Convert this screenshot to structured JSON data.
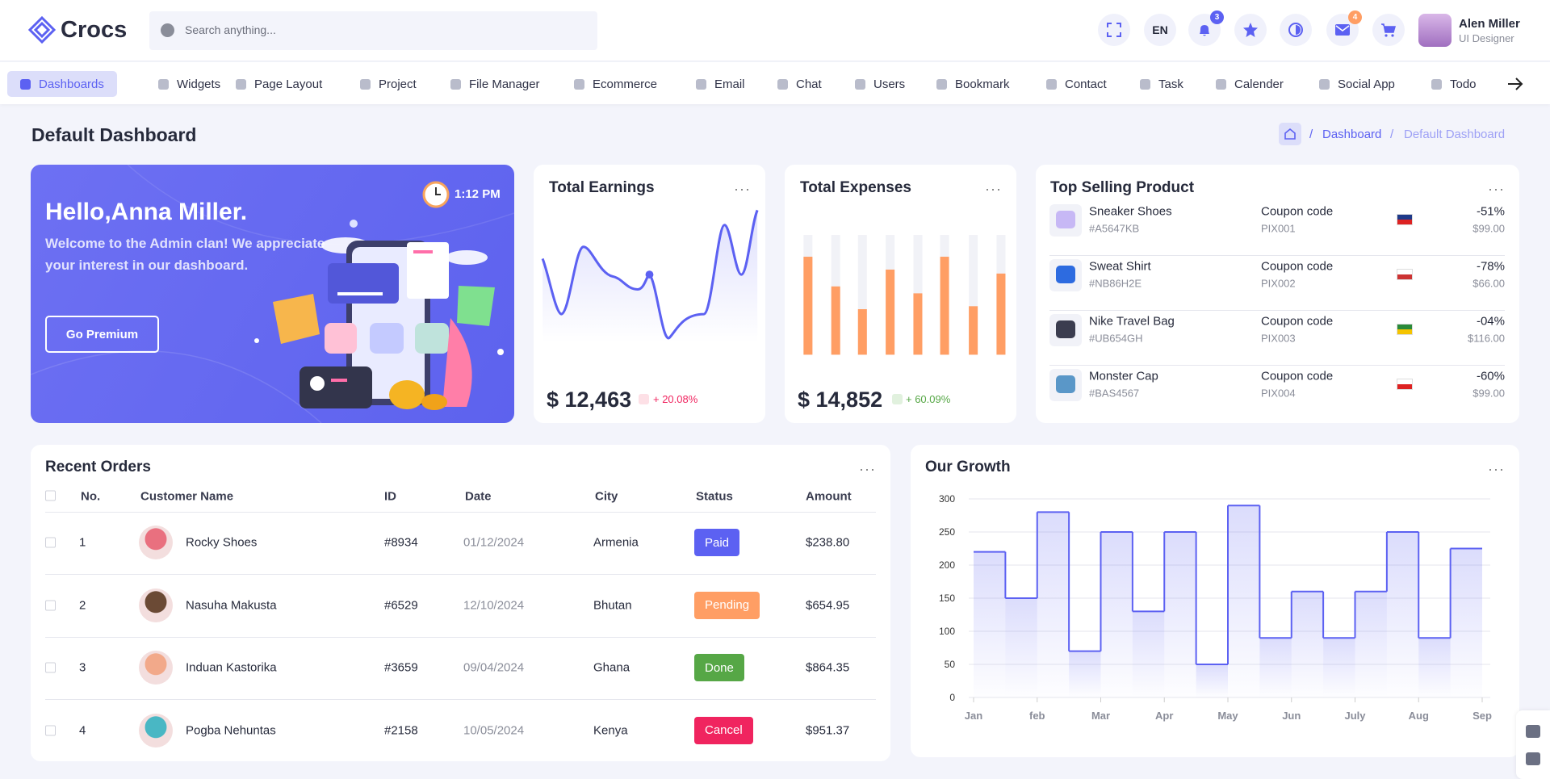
{
  "header": {
    "logo": "Crocs",
    "search_placeholder": "Search anything...",
    "language": "EN",
    "notification_count": 3,
    "message_count": 4,
    "user_name": "Alen Miller",
    "user_role": "UI Designer"
  },
  "nav": {
    "active": 0,
    "items": [
      "Dashboards",
      "Widgets",
      "Page Layout",
      "Project",
      "File Manager",
      "Ecommerce",
      "Email",
      "Chat",
      "Users",
      "Bookmark",
      "Contact",
      "Task",
      "Calender",
      "Social App",
      "Todo"
    ]
  },
  "page": {
    "title": "Default Dashboard",
    "breadcrumb": [
      "Dashboard",
      "Default Dashboard"
    ]
  },
  "welcome": {
    "greeting": "Hello,Anna Miller.",
    "message": "Welcome to the Admin clan! We appreciate your interest in our dashboard.",
    "button": "Go Premium",
    "time": "1:12 PM"
  },
  "earnings": {
    "title": "Total Earnings",
    "amount": "$ 12,463",
    "change": "+ 20.08%"
  },
  "expenses": {
    "title": "Total Expenses",
    "amount": "$ 14,852",
    "change": "+ 60.09%"
  },
  "top_products": {
    "title": "Top Selling Product",
    "coupon_label": "Coupon code",
    "items": [
      {
        "name": "Sneaker Shoes",
        "code": "#A5647KB",
        "coupon": "PIX001",
        "discount": "-51%",
        "price": "$99.00"
      },
      {
        "name": "Sweat Shirt",
        "code": "#NB86H2E",
        "coupon": "PIX002",
        "discount": "-78%",
        "price": "$66.00"
      },
      {
        "name": "Nike Travel Bag",
        "code": "#UB654GH",
        "coupon": "PIX003",
        "discount": "-04%",
        "price": "$116.00"
      },
      {
        "name": "Monster Cap",
        "code": "#BAS4567",
        "coupon": "PIX004",
        "discount": "-60%",
        "price": "$99.00"
      }
    ]
  },
  "recent_orders": {
    "title": "Recent Orders",
    "columns": [
      "No.",
      "Customer Name",
      "ID",
      "Date",
      "City",
      "Status",
      "Amount"
    ],
    "rows": [
      {
        "no": 1,
        "name": "Rocky Shoes",
        "id": "#8934",
        "date": "01/12/2024",
        "city": "Armenia",
        "status": "Paid",
        "status_color": "#5c61f2",
        "amount": "$238.80"
      },
      {
        "no": 2,
        "name": "Nasuha Makusta",
        "id": "#6529",
        "date": "12/10/2024",
        "city": "Bhutan",
        "status": "Pending",
        "status_color": "#ff9e64",
        "amount": "$654.95"
      },
      {
        "no": 3,
        "name": "Induan Kastorika",
        "id": "#3659",
        "date": "09/04/2024",
        "city": "Ghana",
        "status": "Done",
        "status_color": "#56a746",
        "amount": "$864.35"
      },
      {
        "no": 4,
        "name": "Pogba Nehuntas",
        "id": "#2158",
        "date": "10/05/2024",
        "city": "Kenya",
        "status": "Cancel",
        "status_color": "#f0245f",
        "amount": "$951.37"
      }
    ]
  },
  "growth_chart": {
    "type": "line",
    "step": true,
    "title": "Our Growth",
    "color": "#5c61f2",
    "x": [
      0,
      0.5,
      1,
      1.5,
      2,
      2.5,
      3,
      3.5,
      4,
      4.5,
      5,
      5.5,
      6,
      6.5,
      7,
      7.5
    ],
    "values": [
      220,
      150,
      280,
      70,
      250,
      130,
      250,
      50,
      290,
      90,
      160,
      90,
      160,
      250,
      90,
      225
    ],
    "xlim": [
      0,
      8
    ],
    "xticks": [
      {
        "value": 0,
        "label": "Jan"
      },
      {
        "value": 1,
        "label": "feb"
      },
      {
        "value": 2,
        "label": "Mar"
      },
      {
        "value": 3,
        "label": "Apr"
      },
      {
        "value": 4,
        "label": "May"
      },
      {
        "value": 5,
        "label": "Jun"
      },
      {
        "value": 6,
        "label": "July"
      },
      {
        "value": 7,
        "label": "Aug"
      },
      {
        "value": 8,
        "label": "Sep"
      }
    ],
    "ylim": [
      0,
      300
    ],
    "yticks": [
      0,
      50,
      100,
      150,
      200,
      250,
      300
    ],
    "grid": true
  }
}
